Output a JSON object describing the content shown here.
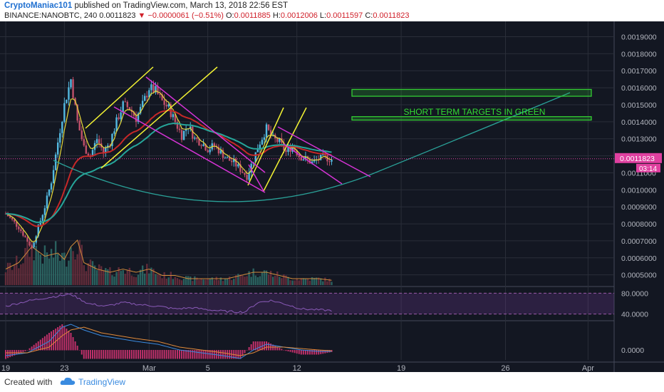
{
  "header": {
    "author": "CryptoManiac101",
    "published": "published on TradingView.com, March 13, 2018 22:56 EST",
    "symbol": "BINANCE:NANOBTC, 240",
    "last": "0.0011823",
    "change": "−0.0000061 (−0.51%)",
    "open_label": "O:",
    "open": "0.0011885",
    "high_label": "H:",
    "high": "0.0012006",
    "low_label": "L:",
    "low": "0.0011597",
    "close_label": "C:",
    "close": "0.0011823"
  },
  "footer": {
    "created": "Created with",
    "brand": "TradingView"
  },
  "colors": {
    "background": "#131722",
    "grid": "#2a2e39",
    "up": "#53b9e0",
    "down": "#c0506a",
    "ema_fast": "#e6d93a",
    "ema_mid": "#c62828",
    "ema_slow": "#26a69a",
    "channel": "#d633d6",
    "flag": "#f2f233",
    "target": "#33cc33",
    "arc": "#2aa198"
  },
  "chart_data": {
    "type": "candlestick",
    "symbol": "NANOBTC",
    "x_tick_labels": [
      "19",
      "23",
      "Mar",
      "5",
      "12",
      "19",
      "26",
      "Apr"
    ],
    "y_tick_labels": [
      "0.0019000",
      "0.0018000",
      "0.0017000",
      "0.0016000",
      "0.0015000",
      "0.0014000",
      "0.0013000",
      "0.0012000",
      "0.0011000",
      "0.0010000",
      "0.0009000",
      "0.0008000",
      "0.0007000",
      "0.0006000",
      "0.0005000"
    ],
    "ylim": [
      0.00044,
      0.00199
    ],
    "last_price_label": "0.0011823",
    "countdown_label": "03:14",
    "price_path": [
      [
        0,
        0.00086
      ],
      [
        3,
        0.00082
      ],
      [
        6,
        0.00078
      ],
      [
        9,
        0.00072
      ],
      [
        12,
        0.00066
      ],
      [
        15,
        0.00078
      ],
      [
        18,
        0.0009
      ],
      [
        21,
        0.00105
      ],
      [
        24,
        0.00128
      ],
      [
        27,
        0.0015
      ],
      [
        30,
        0.00165
      ],
      [
        33,
        0.0014
      ],
      [
        36,
        0.00125
      ],
      [
        39,
        0.0012
      ],
      [
        42,
        0.0013
      ],
      [
        45,
        0.00122
      ],
      [
        48,
        0.00128
      ],
      [
        51,
        0.0014
      ],
      [
        54,
        0.0015
      ],
      [
        57,
        0.00148
      ],
      [
        60,
        0.00142
      ],
      [
        63,
        0.0015
      ],
      [
        66,
        0.0016
      ],
      [
        69,
        0.00158
      ],
      [
        72,
        0.00152
      ],
      [
        75,
        0.00148
      ],
      [
        78,
        0.0014
      ],
      [
        81,
        0.00132
      ],
      [
        84,
        0.00138
      ],
      [
        87,
        0.0013
      ],
      [
        90,
        0.00128
      ],
      [
        93,
        0.00124
      ],
      [
        96,
        0.00126
      ],
      [
        99,
        0.00122
      ],
      [
        102,
        0.00118
      ],
      [
        105,
        0.00116
      ],
      [
        108,
        0.00112
      ],
      [
        111,
        0.00108
      ],
      [
        114,
        0.00118
      ],
      [
        117,
        0.00128
      ],
      [
        120,
        0.00136
      ],
      [
        123,
        0.0013
      ],
      [
        126,
        0.00128
      ],
      [
        129,
        0.00122
      ],
      [
        132,
        0.00126
      ],
      [
        135,
        0.0012
      ],
      [
        138,
        0.00118
      ],
      [
        141,
        0.00116
      ],
      [
        144,
        0.00118
      ],
      [
        147,
        0.00119
      ],
      [
        150,
        0.00118
      ]
    ],
    "volume_path": [
      [
        0,
        0.5
      ],
      [
        6,
        0.7
      ],
      [
        12,
        1.2
      ],
      [
        18,
        0.9
      ],
      [
        24,
        1.0
      ],
      [
        27,
        0.8
      ],
      [
        30,
        1.2
      ],
      [
        33,
        1.4
      ],
      [
        36,
        0.7
      ],
      [
        42,
        0.5
      ],
      [
        48,
        0.4
      ],
      [
        54,
        0.5
      ],
      [
        60,
        0.4
      ],
      [
        66,
        0.5
      ],
      [
        72,
        0.3
      ],
      [
        78,
        0.3
      ],
      [
        84,
        0.2
      ],
      [
        90,
        0.2
      ],
      [
        96,
        0.2
      ],
      [
        102,
        0.2
      ],
      [
        108,
        0.3
      ],
      [
        114,
        0.4
      ],
      [
        120,
        0.4
      ],
      [
        126,
        0.3
      ],
      [
        132,
        0.2
      ],
      [
        138,
        0.2
      ],
      [
        144,
        0.2
      ],
      [
        150,
        0.15
      ]
    ],
    "rsi": {
      "tick_labels": [
        "80.0000",
        "40.0000"
      ],
      "levels": [
        80,
        40
      ],
      "path": [
        [
          0,
          55
        ],
        [
          10,
          65
        ],
        [
          20,
          72
        ],
        [
          30,
          78
        ],
        [
          38,
          60
        ],
        [
          46,
          55
        ],
        [
          54,
          62
        ],
        [
          62,
          58
        ],
        [
          70,
          55
        ],
        [
          78,
          50
        ],
        [
          86,
          52
        ],
        [
          94,
          48
        ],
        [
          102,
          45
        ],
        [
          110,
          44
        ],
        [
          116,
          62
        ],
        [
          122,
          66
        ],
        [
          128,
          60
        ],
        [
          136,
          50
        ],
        [
          144,
          48
        ],
        [
          150,
          47
        ]
      ]
    },
    "macd": {
      "tick_labels": [
        "0.0000"
      ],
      "macd_path": [
        [
          0,
          -2
        ],
        [
          10,
          -1
        ],
        [
          20,
          3
        ],
        [
          26,
          8
        ],
        [
          30,
          9
        ],
        [
          36,
          7
        ],
        [
          44,
          5
        ],
        [
          52,
          4
        ],
        [
          60,
          3
        ],
        [
          70,
          2
        ],
        [
          80,
          0
        ],
        [
          90,
          -1
        ],
        [
          100,
          -2
        ],
        [
          108,
          -3
        ],
        [
          114,
          0
        ],
        [
          120,
          2
        ],
        [
          128,
          1
        ],
        [
          136,
          0
        ],
        [
          144,
          -0.5
        ],
        [
          150,
          -0.5
        ]
      ],
      "signal_path": [
        [
          0,
          -1
        ],
        [
          10,
          -1
        ],
        [
          20,
          1
        ],
        [
          26,
          5
        ],
        [
          30,
          7
        ],
        [
          36,
          8
        ],
        [
          44,
          6
        ],
        [
          52,
          5
        ],
        [
          60,
          4
        ],
        [
          70,
          3
        ],
        [
          80,
          1
        ],
        [
          90,
          0
        ],
        [
          100,
          -1
        ],
        [
          108,
          -2
        ],
        [
          114,
          -1
        ],
        [
          120,
          1
        ],
        [
          128,
          1
        ],
        [
          136,
          0.5
        ],
        [
          144,
          0
        ],
        [
          150,
          -0.3
        ]
      ]
    },
    "annotations": {
      "target_label": "SHORT TERM TARGETS IN GREEN",
      "target_zones": [
        [
          0.00155,
          0.00159
        ],
        [
          0.00141,
          0.00143
        ]
      ]
    }
  }
}
